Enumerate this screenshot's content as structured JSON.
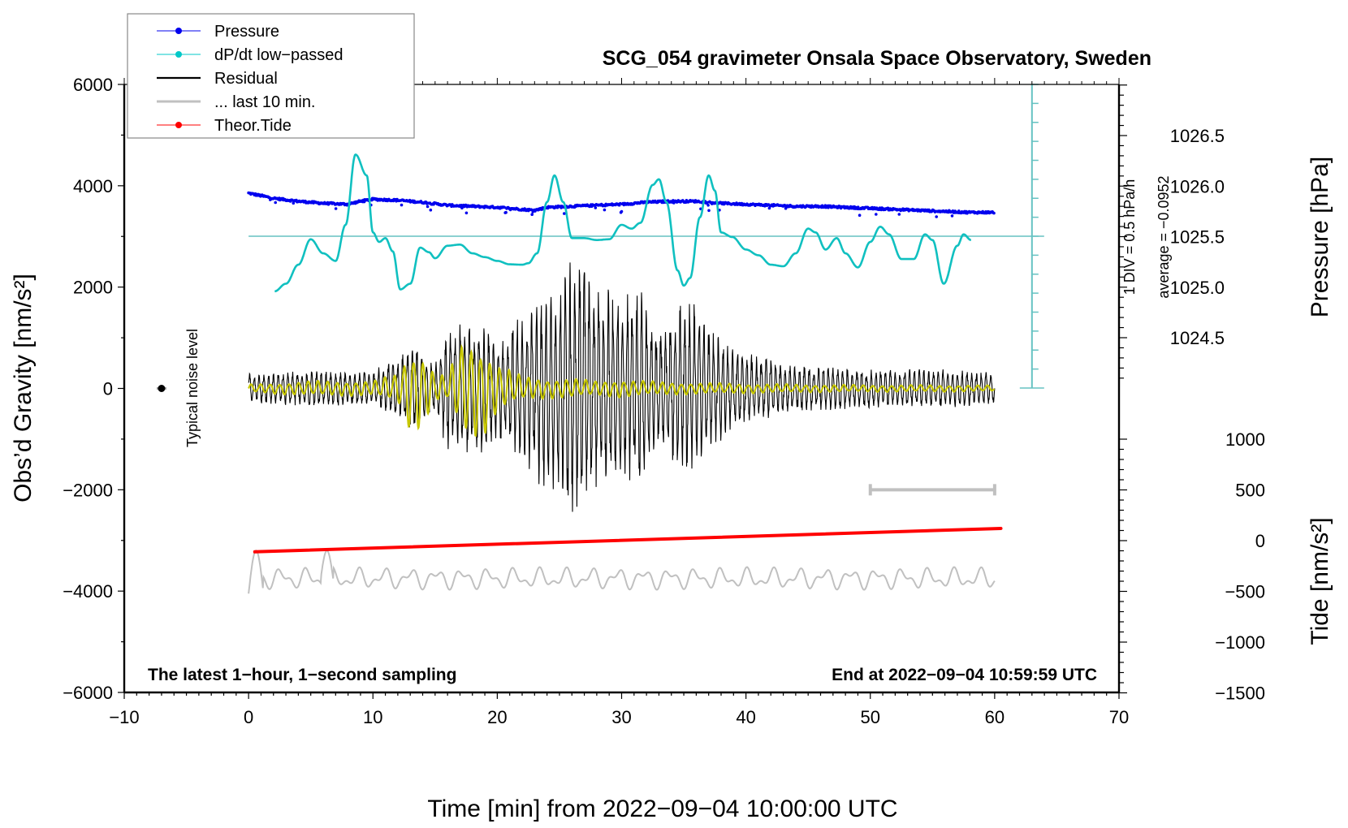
{
  "chart_data": {
    "type": "line",
    "title": "SCG_054 gravimeter Onsala Space Observatory, Sweden",
    "xlabel": "Time [min] from 2022−09−04 10:00:00 UTC",
    "ylabel_left": "Obs’d Gravity [nm/s²]",
    "ylabel_right_top": "Pressure [hPa]",
    "ylabel_right_bottom": "Tide [nm/s²]",
    "xlim": [
      -10,
      70
    ],
    "ylim_left": [
      -6000,
      6000
    ],
    "pressure_lim": [
      1024.0,
      1027.0
    ],
    "tide_lim": [
      -1500,
      1000
    ],
    "grid": false,
    "legend_position": "top-left",
    "x_ticks": [
      -10,
      0,
      10,
      20,
      30,
      40,
      50,
      60,
      70
    ],
    "x_tick_labels": [
      "−10",
      "0",
      "10",
      "20",
      "30",
      "40",
      "50",
      "60",
      "70"
    ],
    "y_left_ticks": [
      6000,
      4000,
      2000,
      0,
      -2000,
      -4000,
      -6000
    ],
    "y_left_tick_labels": [
      "6000",
      "4000",
      "2000",
      "0",
      "−2000",
      "−4000",
      "−6000"
    ],
    "pressure_ticks": [
      1026.5,
      1026.0,
      1025.5,
      1025.0,
      1024.5
    ],
    "pressure_tick_labels": [
      "1026.5",
      "1026.0",
      "1025.5",
      "1025.0",
      "1024.5"
    ],
    "tide_ticks": [
      1000,
      500,
      0,
      -500,
      -1000,
      -1500
    ],
    "tide_tick_labels": [
      "1000",
      "500",
      "0",
      "−500",
      "−1000",
      "−1500"
    ],
    "legend": [
      {
        "label": "Pressure",
        "color": "#0000ee",
        "style": "line-dot"
      },
      {
        "label": "dP/dt low−passed",
        "color": "#00c8c8",
        "style": "line-dot"
      },
      {
        "label": "Residual",
        "color": "#000000",
        "style": "line"
      },
      {
        "label": "... last 10 min.",
        "color": "#c0c0c0",
        "style": "line"
      },
      {
        "label": "Theor.Tide",
        "color": "#ff0000",
        "style": "line-dot"
      }
    ],
    "colors": {
      "pressure": "#0000ee",
      "dpdt": "#10c0c0",
      "dpdt_scale": "#66c2c2",
      "residual": "#000000",
      "residual_filtered": "#c8c800",
      "last10": "#c0c0c0",
      "tide": "#ff0000",
      "noise": "#000000"
    },
    "series": [
      {
        "name": "Pressure",
        "axis": "pressure",
        "unit": "hPa",
        "x_range": [
          0,
          60
        ],
        "points": [
          [
            0,
            1025.93
          ],
          [
            2,
            1025.88
          ],
          [
            4,
            1025.85
          ],
          [
            6,
            1025.83
          ],
          [
            8,
            1025.82
          ],
          [
            9,
            1025.85
          ],
          [
            10,
            1025.87
          ],
          [
            12,
            1025.86
          ],
          [
            14,
            1025.84
          ],
          [
            16,
            1025.81
          ],
          [
            18,
            1025.8
          ],
          [
            20,
            1025.79
          ],
          [
            22,
            1025.77
          ],
          [
            23,
            1025.76
          ],
          [
            24,
            1025.79
          ],
          [
            26,
            1025.8
          ],
          [
            28,
            1025.81
          ],
          [
            30,
            1025.82
          ],
          [
            32,
            1025.84
          ],
          [
            34,
            1025.85
          ],
          [
            36,
            1025.85
          ],
          [
            38,
            1025.83
          ],
          [
            40,
            1025.82
          ],
          [
            42,
            1025.81
          ],
          [
            44,
            1025.8
          ],
          [
            46,
            1025.8
          ],
          [
            48,
            1025.79
          ],
          [
            50,
            1025.78
          ],
          [
            52,
            1025.77
          ],
          [
            54,
            1025.76
          ],
          [
            56,
            1025.75
          ],
          [
            58,
            1025.74
          ],
          [
            60,
            1025.74
          ]
        ],
        "scatter_hpa": 0.02
      },
      {
        "name": "dP/dt low-passed",
        "axis": "dpdt",
        "unit": "hPa/h",
        "baseline_average": -0.0952,
        "scale_note": "1 DIV = 0.5 hPa/h",
        "points": [
          [
            2.1,
            -1.45
          ],
          [
            3,
            -1.25
          ],
          [
            4,
            -0.75
          ],
          [
            5,
            -0.08
          ],
          [
            6,
            -0.45
          ],
          [
            7,
            -0.65
          ],
          [
            7.8,
            0.3
          ],
          [
            8.6,
            2.15
          ],
          [
            9.5,
            1.6
          ],
          [
            10,
            0.1
          ],
          [
            10.5,
            -0.15
          ],
          [
            11,
            -0.05
          ],
          [
            11.6,
            -0.4
          ],
          [
            12.2,
            -1.4
          ],
          [
            13,
            -1.25
          ],
          [
            13.8,
            -0.3
          ],
          [
            14.5,
            -0.42
          ],
          [
            15,
            -0.58
          ],
          [
            16,
            -0.25
          ],
          [
            17,
            -0.22
          ],
          [
            18,
            -0.45
          ],
          [
            19,
            -0.55
          ],
          [
            20,
            -0.65
          ],
          [
            21,
            -0.74
          ],
          [
            22,
            -0.75
          ],
          [
            22.5,
            -0.71
          ],
          [
            23.2,
            -0.45
          ],
          [
            24,
            0.9
          ],
          [
            24.6,
            1.6
          ],
          [
            25.3,
            0.9
          ],
          [
            26,
            -0.05
          ],
          [
            27,
            -0.05
          ],
          [
            28,
            -0.1
          ],
          [
            29,
            -0.08
          ],
          [
            30,
            0.3
          ],
          [
            30.8,
            0.2
          ],
          [
            31.5,
            0.35
          ],
          [
            32.5,
            1.35
          ],
          [
            33,
            1.5
          ],
          [
            33.6,
            0.9
          ],
          [
            34.5,
            -0.9
          ],
          [
            35,
            -1.3
          ],
          [
            35.5,
            -1.1
          ],
          [
            36.3,
            0.5
          ],
          [
            37,
            1.6
          ],
          [
            37.5,
            1.2
          ],
          [
            38,
            0.1
          ],
          [
            38.9,
            -0.02
          ],
          [
            40,
            -0.35
          ],
          [
            41,
            -0.5
          ],
          [
            42,
            -0.75
          ],
          [
            43,
            -0.79
          ],
          [
            44,
            -0.45
          ],
          [
            45,
            0.2
          ],
          [
            45.6,
            0.1
          ],
          [
            46.4,
            -0.35
          ],
          [
            47.3,
            -0.05
          ],
          [
            48,
            -0.45
          ],
          [
            49,
            -0.82
          ],
          [
            50,
            -0.15
          ],
          [
            50.8,
            0.25
          ],
          [
            51.5,
            0.05
          ],
          [
            52.5,
            -0.6
          ],
          [
            53.5,
            -0.6
          ],
          [
            54.4,
            0.05
          ],
          [
            55,
            -0.1
          ],
          [
            55.9,
            -1.25
          ],
          [
            57,
            -0.25
          ],
          [
            57.5,
            0.05
          ],
          [
            58.1,
            -0.1
          ]
        ]
      },
      {
        "name": "Residual",
        "axis": "gravity",
        "unit": "nm/s²",
        "envelope": [
          [
            0,
            300
          ],
          [
            5,
            350
          ],
          [
            10,
            350
          ],
          [
            12,
            650
          ],
          [
            13,
            900
          ],
          [
            14,
            800
          ],
          [
            15,
            500
          ],
          [
            16,
            1300
          ],
          [
            17,
            1300
          ],
          [
            18,
            1400
          ],
          [
            19,
            1300
          ],
          [
            20,
            1000
          ],
          [
            22,
            1500
          ],
          [
            24,
            2100
          ],
          [
            25.5,
            2400
          ],
          [
            26.5,
            2800
          ],
          [
            27.5,
            2300
          ],
          [
            28.5,
            2000
          ],
          [
            29.5,
            2000
          ],
          [
            30.5,
            1900
          ],
          [
            31.5,
            2000
          ],
          [
            32.5,
            1300
          ],
          [
            33,
            1200
          ],
          [
            34,
            1500
          ],
          [
            35,
            1800
          ],
          [
            36,
            1700
          ],
          [
            37,
            1200
          ],
          [
            38,
            1100
          ],
          [
            39,
            800
          ],
          [
            40,
            700
          ],
          [
            42,
            600
          ],
          [
            45,
            450
          ],
          [
            50,
            400
          ],
          [
            55,
            400
          ],
          [
            60,
            350
          ]
        ],
        "min_value": -2800,
        "max_value": 2600
      },
      {
        "name": "Residual (filtered)",
        "axis": "gravity",
        "unit": "nm/s²",
        "envelope": [
          [
            0,
            80
          ],
          [
            5,
            150
          ],
          [
            10,
            150
          ],
          [
            12,
            300
          ],
          [
            13,
            850
          ],
          [
            14,
            750
          ],
          [
            15,
            300
          ],
          [
            16,
            250
          ],
          [
            17,
            900
          ],
          [
            18,
            1000
          ],
          [
            19,
            900
          ],
          [
            20,
            500
          ],
          [
            22,
            250
          ],
          [
            24,
            200
          ],
          [
            26,
            200
          ],
          [
            28,
            150
          ],
          [
            30,
            180
          ],
          [
            32,
            150
          ],
          [
            35,
            120
          ],
          [
            40,
            100
          ],
          [
            45,
            80
          ],
          [
            50,
            70
          ],
          [
            55,
            70
          ],
          [
            60,
            60
          ]
        ]
      },
      {
        "name": "... last 10 min.",
        "axis": "gravity",
        "unit": "nm/s²",
        "offset": -3750,
        "x_range": [
          0,
          60
        ],
        "amplitude": 250
      },
      {
        "name": "Theor.Tide",
        "axis": "tide",
        "unit": "nm/s²",
        "points": [
          [
            0.5,
            -110
          ],
          [
            60.5,
            120
          ]
        ]
      }
    ],
    "noise_level": {
      "x": -7,
      "y": 0,
      "label": "Typical noise level"
    },
    "last10_bar": {
      "x_start": 50,
      "x_end": 60,
      "y": -2000
    },
    "dpdt_scale": {
      "x": 63,
      "label_div": "1 DIV = 0.5 hPa/h",
      "label_avg": "average = −0.0952",
      "divisions": 8
    }
  },
  "annotations": {
    "bottom_left": "The latest 1−hour, 1−second sampling",
    "bottom_right": "End at 2022−09−04 10:59:59 UTC"
  }
}
